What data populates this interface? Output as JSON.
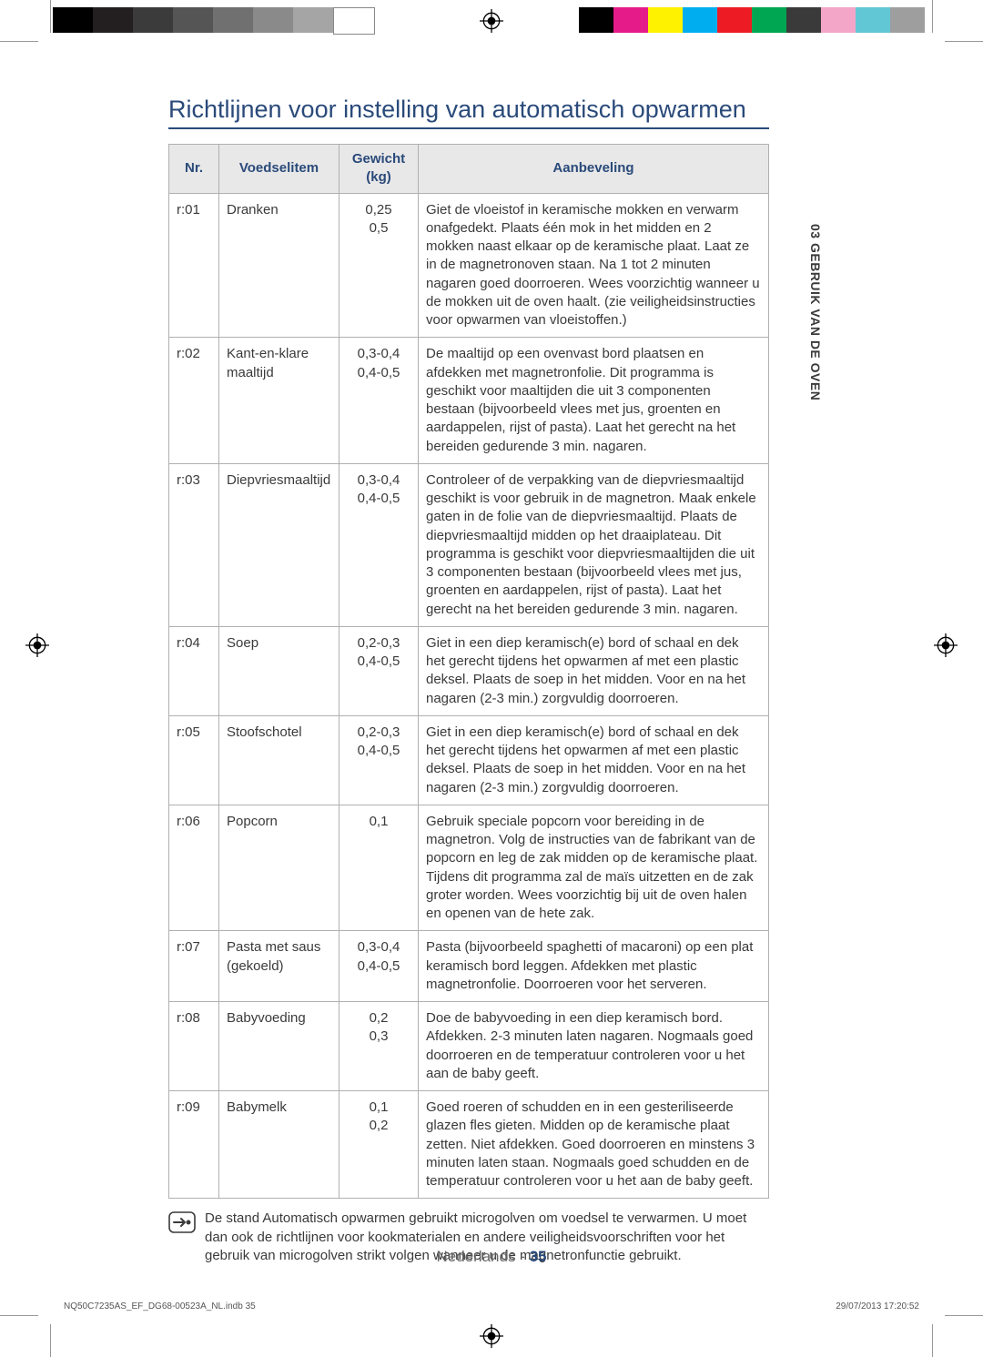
{
  "printer": {
    "left_swatches": [
      "#000000",
      "#231f20",
      "#3b3b3b",
      "#555555",
      "#707070",
      "#8a8a8a",
      "#a5a5a5",
      "#ffffff"
    ],
    "right_swatches": [
      "#000000",
      "#e51b8a",
      "#fff200",
      "#00aeef",
      "#ed1c24",
      "#00a651",
      "#3a3a3a",
      "#f4a6c9",
      "#62c7d4",
      "#9e9e9e"
    ]
  },
  "section_tab": "03 GEBRUIK VAN DE OVEN",
  "title": "Richtlijnen voor instelling van automatisch opwarmen",
  "table": {
    "headers": {
      "nr": "Nr.",
      "item": "Voedselitem",
      "wt": "Gewicht (kg)",
      "rec": "Aanbeveling"
    },
    "rows": [
      {
        "nr": "r:01",
        "item": "Dranken",
        "wt": "0,25\n0,5",
        "rec": "Giet de vloeistof in keramische mokken en verwarm onafgedekt. Plaats één mok in het midden en 2 mokken naast elkaar op de keramische plaat. Laat ze in de magnetronoven staan. Na 1 tot 2 minuten nagaren goed doorroeren. Wees voorzichtig wanneer u de mokken uit de oven haalt. (zie veiligheidsinstructies voor opwarmen van vloeistoffen.)"
      },
      {
        "nr": "r:02",
        "item": "Kant-en-klare maaltijd",
        "wt": "0,3-0,4\n0,4-0,5",
        "rec": "De maaltijd op een ovenvast bord plaatsen en afdekken met magnetronfolie. Dit programma is geschikt voor maaltijden die uit 3 componenten bestaan (bijvoorbeeld vlees met jus, groenten en aardappelen, rijst of pasta). Laat het gerecht na het bereiden gedurende 3 min. nagaren."
      },
      {
        "nr": "r:03",
        "item": "Diepvriesmaaltijd",
        "wt": "0,3-0,4\n0,4-0,5",
        "rec": "Controleer of de verpakking van de diepvriesmaaltijd geschikt is voor gebruik in de magnetron. Maak enkele gaten in de folie van de diepvriesmaaltijd. Plaats de diepvriesmaaltijd midden op het draaiplateau. Dit programma is geschikt voor diepvriesmaaltijden die uit 3 componenten bestaan (bijvoorbeeld vlees met jus, groenten en aardappelen, rijst of pasta). Laat het gerecht na het bereiden gedurende 3 min. nagaren."
      },
      {
        "nr": "r:04",
        "item": "Soep",
        "wt": "0,2-0,3\n0,4-0,5",
        "rec": "Giet in een diep keramisch(e) bord of schaal en dek het gerecht tijdens het opwarmen af met een plastic deksel. Plaats de soep in het midden. Voor en na het nagaren (2-3 min.) zorgvuldig doorroeren."
      },
      {
        "nr": "r:05",
        "item": "Stoofschotel",
        "wt": "0,2-0,3\n0,4-0,5",
        "rec": "Giet in een diep keramisch(e) bord of schaal en dek het gerecht tijdens het opwarmen af met een plastic deksel. Plaats de soep in het midden. Voor en na het nagaren (2-3 min.) zorgvuldig doorroeren."
      },
      {
        "nr": "r:06",
        "item": "Popcorn",
        "wt": "0,1",
        "rec": "Gebruik speciale popcorn voor bereiding in de magnetron. Volg de instructies van de fabrikant van de popcorn en leg de zak midden op de keramische plaat. Tijdens dit programma zal de maïs uitzetten en de zak groter worden. Wees voorzichtig bij uit de oven halen en openen van de hete zak."
      },
      {
        "nr": "r:07",
        "item": "Pasta met saus (gekoeld)",
        "wt": "0,3-0,4\n0,4-0,5",
        "rec": "Pasta (bijvoorbeeld spaghetti of macaroni) op een plat keramisch bord leggen. Afdekken met plastic magnetronfolie. Doorroeren voor het serveren."
      },
      {
        "nr": "r:08",
        "item": "Babyvoeding",
        "wt": "0,2\n0,3",
        "rec": "Doe de babyvoeding in een diep keramisch bord. Afdekken. 2-3 minuten laten nagaren. Nogmaals goed doorroeren en de temperatuur controleren voor u het aan de baby geeft."
      },
      {
        "nr": "r:09",
        "item": "Babymelk",
        "wt": "0,1\n0,2",
        "rec": "Goed roeren of schudden en in een gesteriliseerde glazen fles gieten. Midden op de keramische plaat zetten. Niet afdekken. Goed doorroeren en minstens 3 minuten laten staan. Nogmaals goed schudden en de temperatuur controleren voor u het aan de baby geeft."
      }
    ]
  },
  "note": "De stand Automatisch opwarmen gebruikt microgolven om voedsel te verwarmen. U moet dan ook de richtlijnen voor kookmaterialen en andere veiligheidsvoorschriften voor het gebruik van microgolven strikt volgen wanneer u de magnetronfunctie gebruikt.",
  "footer": {
    "lang": "Nederlands - ",
    "page": "35",
    "file": "NQ50C7235AS_EF_DG68-00523A_NL.indb   35",
    "ts": "29/07/2013   17:20:52"
  },
  "colors": {
    "accent": "#2a4a7a",
    "border": "#b0b0b0",
    "header_bg": "#e8e8e8",
    "text": "#3a3a3a"
  }
}
